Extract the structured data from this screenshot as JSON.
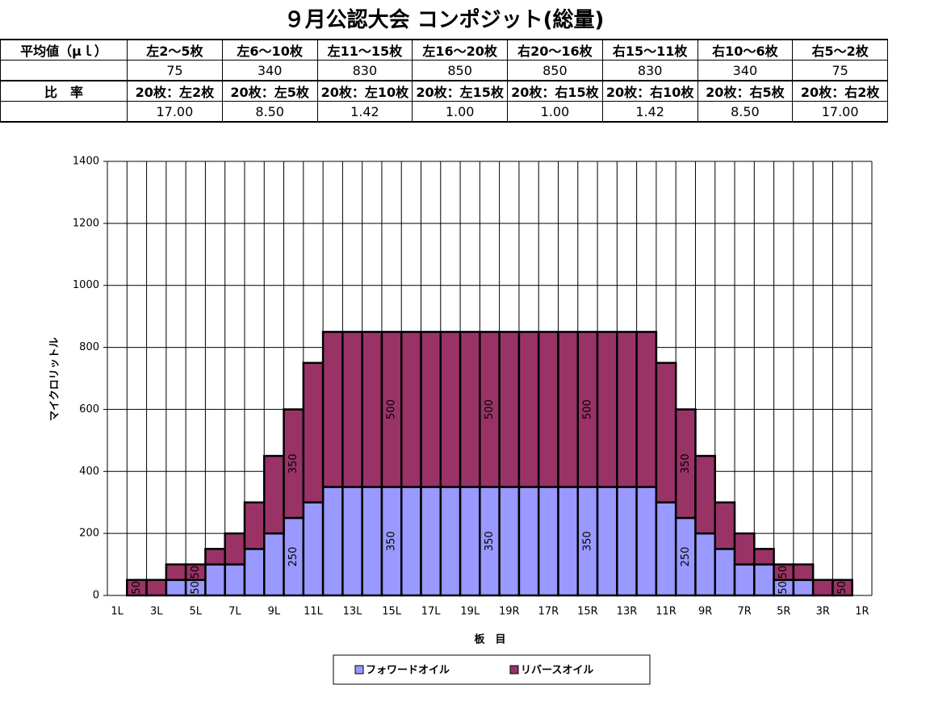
{
  "title": "９月公認大会 コンポジット(総量)",
  "table": {
    "sections": [
      {
        "label": "平均値（μｌ）",
        "heads": [
          "左2～5枚",
          "左6～10枚",
          "左11～15枚",
          "左16～20枚",
          "右20～16枚",
          "右15～11枚",
          "右10～6枚",
          "右5～2枚"
        ],
        "values": [
          "75",
          "340",
          "830",
          "850",
          "850",
          "830",
          "340",
          "75"
        ]
      },
      {
        "label": "比　率",
        "heads": [
          "20枚：左2枚",
          "20枚：左5枚",
          "20枚：左10枚",
          "20枚：左15枚",
          "20枚：右15枚",
          "20枚：右10枚",
          "20枚：右5枚",
          "20枚：右2枚"
        ],
        "values": [
          "17.00",
          "8.50",
          "1.42",
          "1.00",
          "1.00",
          "1.42",
          "8.50",
          "17.00"
        ]
      }
    ]
  },
  "chart_data": {
    "type": "stacked_bar",
    "x_label": "板　目",
    "y_label": "マイクロリットル",
    "categories": [
      "1L",
      null,
      "3L",
      null,
      "5L",
      null,
      "7L",
      null,
      "9L",
      null,
      "11L",
      null,
      "13L",
      null,
      "15L",
      null,
      "17L",
      null,
      "19L",
      null,
      "19R",
      null,
      "17R",
      null,
      "15R",
      null,
      "13R",
      null,
      "11R",
      null,
      "9R",
      null,
      "7R",
      null,
      "5R",
      null,
      "3R",
      null,
      "1R"
    ],
    "series": [
      {
        "name": "フォワードオイル",
        "color": "#9999ff",
        "values": [
          0,
          0,
          0,
          50,
          50,
          100,
          100,
          150,
          200,
          250,
          300,
          350,
          350,
          350,
          350,
          350,
          350,
          350,
          350,
          350,
          350,
          350,
          350,
          350,
          350,
          350,
          350,
          350,
          300,
          250,
          200,
          150,
          100,
          100,
          50,
          50,
          0,
          0,
          0
        ],
        "labeled": [
          4,
          9,
          14,
          19,
          24,
          29,
          34
        ]
      },
      {
        "name": "リバースオイル",
        "color": "#993366",
        "values": [
          0,
          50,
          50,
          50,
          50,
          50,
          100,
          150,
          250,
          350,
          450,
          500,
          500,
          500,
          500,
          500,
          500,
          500,
          500,
          500,
          500,
          500,
          500,
          500,
          500,
          500,
          500,
          500,
          450,
          350,
          250,
          150,
          100,
          50,
          50,
          50,
          50,
          50,
          0
        ],
        "labeled": [
          1,
          4,
          9,
          14,
          19,
          24,
          29,
          34,
          37
        ]
      }
    ],
    "ylim": [
      0,
      1400
    ],
    "yticks": [
      0,
      200,
      400,
      600,
      800,
      1000,
      1200,
      1400
    ],
    "grid": true,
    "legend": "bottom"
  }
}
